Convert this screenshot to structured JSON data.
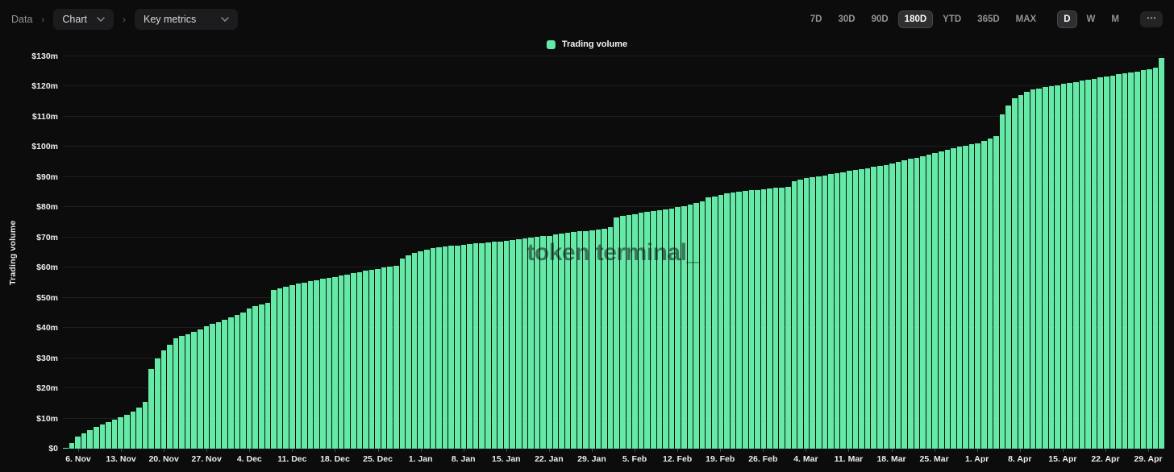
{
  "header": {
    "breadcrumb_root": "Data",
    "separator": "›",
    "chart_dropdown": "Chart",
    "metric_dropdown": "Key metrics",
    "ranges": [
      "7D",
      "30D",
      "90D",
      "180D",
      "YTD",
      "365D",
      "MAX"
    ],
    "active_range": "180D",
    "granularities": [
      "D",
      "W",
      "M"
    ],
    "active_granularity": "D",
    "more_label": "⋯"
  },
  "legend": {
    "label": "Trading volume",
    "swatch_color": "#65e9a6"
  },
  "watermark": "token terminal_",
  "chart_data": {
    "type": "bar",
    "title": "Trading volume",
    "series_name": "Trading volume",
    "ylabel": "Trading volume",
    "unit": "$m",
    "ylim": [
      0,
      130
    ],
    "ytick_labels": [
      "$0",
      "$10m",
      "$20m",
      "$30m",
      "$40m",
      "$50m",
      "$60m",
      "$70m",
      "$80m",
      "$90m",
      "$100m",
      "$110m",
      "$120m",
      "$130m"
    ],
    "tick_labels": [
      "6. Nov",
      "13. Nov",
      "20. Nov",
      "27. Nov",
      "4. Dec",
      "11. Dec",
      "18. Dec",
      "25. Dec",
      "1. Jan",
      "8. Jan",
      "15. Jan",
      "22. Jan",
      "29. Jan",
      "5. Feb",
      "12. Feb",
      "19. Feb",
      "26. Feb",
      "4. Mar",
      "11. Mar",
      "18. Mar",
      "25. Mar",
      "1. Apr",
      "8. Apr",
      "15. Apr",
      "22. Apr",
      "29. Apr"
    ],
    "tick_start_index": 2,
    "tick_step": 7,
    "bar_color": "#65e9a6",
    "grid": true,
    "legend_position": "top-center",
    "values": [
      0.4,
      1.8,
      4,
      5.2,
      6.2,
      7.2,
      8,
      8.8,
      9.5,
      10.3,
      11.2,
      12.2,
      13.5,
      15.5,
      26.5,
      30,
      32.5,
      34.5,
      36.5,
      37.3,
      38,
      38.8,
      39.5,
      40.5,
      41.3,
      42,
      42.8,
      43.5,
      44.3,
      45,
      46.5,
      47.2,
      47.8,
      48.4,
      52.5,
      53.2,
      53.7,
      54.2,
      54.6,
      55,
      55.4,
      55.8,
      56.2,
      56.5,
      56.9,
      57.3,
      57.7,
      58.1,
      58.5,
      58.9,
      59.2,
      59.6,
      60,
      60.3,
      60.7,
      63,
      64,
      64.8,
      65.5,
      66,
      66.4,
      66.7,
      67,
      67.2,
      67.4,
      67.6,
      67.8,
      68,
      68.2,
      68.4,
      68.5,
      68.7,
      68.9,
      69.1,
      69.4,
      69.6,
      69.9,
      70.1,
      70.4,
      70.6,
      70.9,
      71.2,
      71.5,
      71.8,
      72,
      72.2,
      72.4,
      72.7,
      73,
      73.3,
      76.5,
      77.2,
      77.5,
      77.8,
      78.1,
      78.4,
      78.7,
      79,
      79.3,
      79.6,
      80,
      80.4,
      80.8,
      81.3,
      82,
      83.2,
      83.6,
      84,
      84.5,
      84.8,
      85.1,
      85.4,
      85.6,
      85.8,
      86,
      86.2,
      86.4,
      86.6,
      86.8,
      88.7,
      89.2,
      89.6,
      90,
      90.3,
      90.6,
      91,
      91.3,
      91.6,
      92,
      92.3,
      92.7,
      93,
      93.4,
      93.7,
      94.1,
      94.5,
      95,
      95.5,
      96,
      96.5,
      97,
      97.5,
      98,
      98.5,
      99,
      99.5,
      100,
      100.4,
      100.8,
      101.3,
      102,
      102.7,
      103.5,
      110.8,
      113.8,
      116,
      117.3,
      118.3,
      119,
      119.4,
      119.8,
      120.1,
      120.4,
      120.8,
      121.2,
      121.5,
      121.9,
      122.2,
      122.6,
      123,
      123.3,
      123.6,
      124,
      124.3,
      124.7,
      125,
      125.4,
      125.8,
      126.2,
      129.5
    ]
  }
}
